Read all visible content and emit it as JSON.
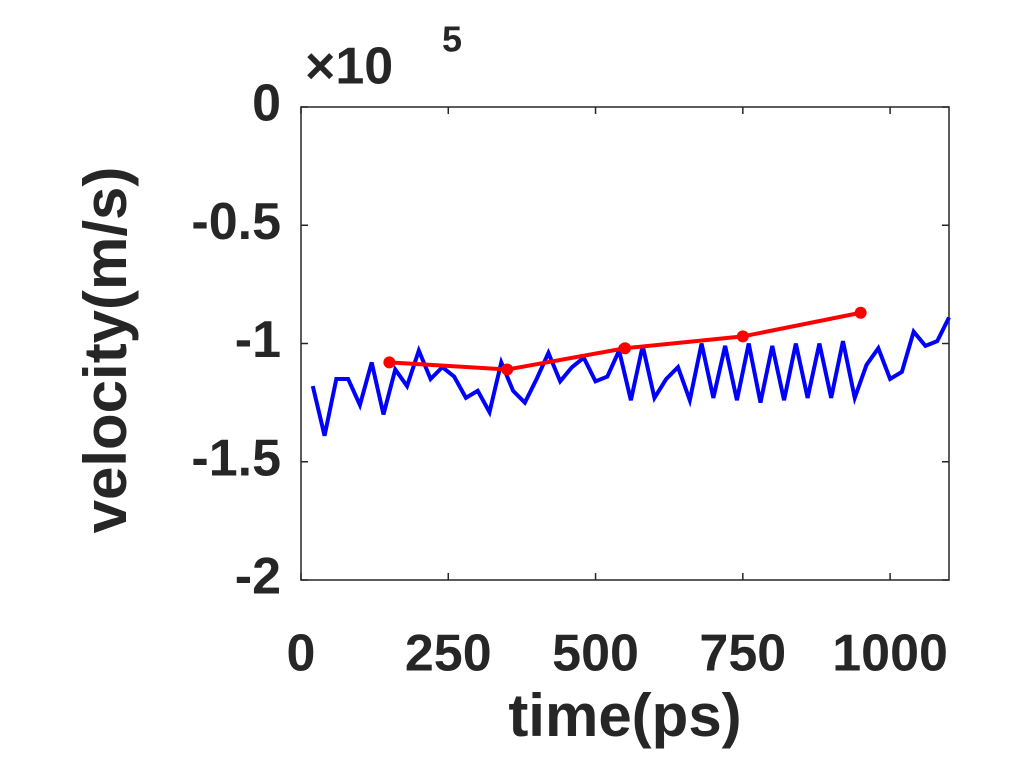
{
  "chart_data": {
    "type": "line",
    "x_label": "time(ps)",
    "y_label": "velocity(m/s)",
    "y_multiplier": {
      "base": "×10",
      "exponent": "5"
    },
    "xlim": [
      0,
      1100
    ],
    "xticks": [
      0,
      250,
      500,
      750,
      1000
    ],
    "ylim": [
      -2,
      0
    ],
    "yticks": [
      -2,
      -1.5,
      -1,
      -0.5,
      0
    ],
    "series": [
      {
        "color": "#0000ff",
        "markers": false,
        "x": [
          20,
          40,
          60,
          80,
          100,
          120,
          140,
          160,
          180,
          200,
          220,
          240,
          260,
          280,
          300,
          320,
          340,
          360,
          380,
          400,
          420,
          440,
          460,
          480,
          500,
          520,
          540,
          560,
          580,
          600,
          620,
          640,
          660,
          680,
          700,
          720,
          740,
          760,
          780,
          800,
          820,
          840,
          860,
          880,
          900,
          920,
          940,
          960,
          980,
          1000,
          1020,
          1040,
          1060,
          1080,
          1100
        ],
        "values": [
          -1.18,
          -1.39,
          -1.15,
          -1.15,
          -1.26,
          -1.08,
          -1.3,
          -1.11,
          -1.18,
          -1.03,
          -1.15,
          -1.1,
          -1.14,
          -1.23,
          -1.2,
          -1.29,
          -1.08,
          -1.2,
          -1.25,
          -1.15,
          -1.04,
          -1.16,
          -1.1,
          -1.06,
          -1.16,
          -1.14,
          -1.03,
          -1.24,
          -1.01,
          -1.23,
          -1.15,
          -1.1,
          -1.24,
          -1.0,
          -1.23,
          -1.01,
          -1.24,
          -1.0,
          -1.25,
          -1.01,
          -1.24,
          -1.0,
          -1.23,
          -1.0,
          -1.23,
          -0.99,
          -1.23,
          -1.09,
          -1.02,
          -1.15,
          -1.12,
          -0.95,
          -1.01,
          -0.99,
          -0.89
        ]
      },
      {
        "color": "#ff0000",
        "markers": true,
        "x": [
          150,
          350,
          550,
          750,
          950
        ],
        "values": [
          -1.08,
          -1.11,
          -1.02,
          -0.97,
          -0.87
        ]
      }
    ]
  }
}
